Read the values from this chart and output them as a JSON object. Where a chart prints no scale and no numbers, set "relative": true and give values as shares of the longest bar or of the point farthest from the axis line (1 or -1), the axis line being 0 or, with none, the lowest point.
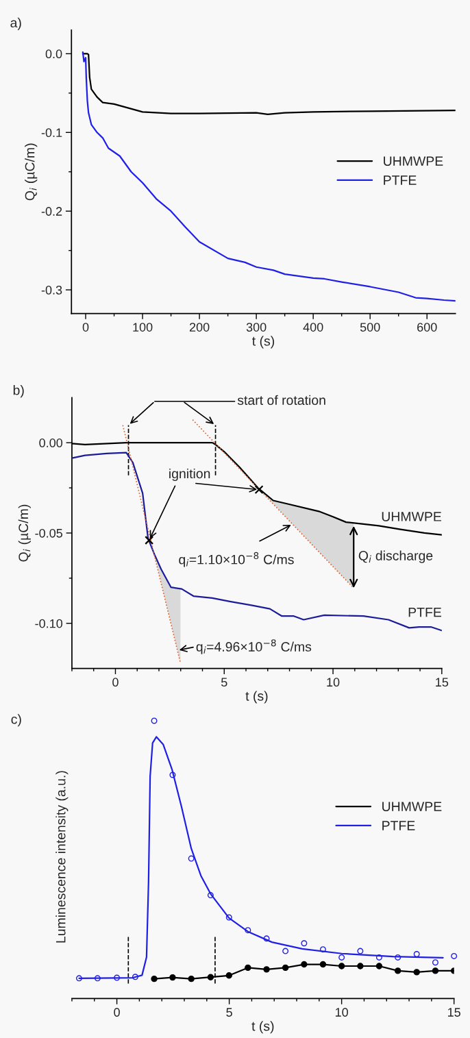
{
  "chart_data": [
    {
      "type": "line",
      "title": "a)",
      "xlabel": "t (s)",
      "ylabel": "Q$_{i}$ (µC/m)",
      "xlim": [
        -25,
        650
      ],
      "ylim": [
        -0.33,
        0.03
      ],
      "xticks": [
        0,
        {
          "value": 50,
          "label": null
        },
        100,
        {
          "value": 150,
          "label": null
        },
        200,
        {
          "value": 250,
          "label": null
        },
        300,
        {
          "value": 350,
          "label": null
        },
        400,
        {
          "value": 450,
          "label": null
        },
        500,
        {
          "value": 550,
          "label": null
        },
        600
      ],
      "yticks": [
        {
          "value": 0,
          "label": "0.0"
        },
        {
          "value": -0.05,
          "label": null
        },
        {
          "value": -0.1,
          "label": "-0.1"
        },
        {
          "value": -0.15,
          "label": null
        },
        {
          "value": -0.2,
          "label": "-0.2"
        },
        {
          "value": -0.25,
          "label": null
        },
        {
          "value": -0.3,
          "label": "-0.3"
        }
      ],
      "legend": "center right",
      "series": [
        {
          "name": "UHMWPE",
          "color": "#000000",
          "x": [
            -5,
            0,
            3,
            5,
            7,
            10,
            20,
            30,
            50,
            75,
            100,
            150,
            200,
            300,
            320,
            350,
            400,
            500,
            650
          ],
          "values": [
            0,
            0,
            0,
            -0.001,
            -0.03,
            -0.045,
            -0.055,
            -0.062,
            -0.064,
            -0.069,
            -0.074,
            -0.076,
            -0.076,
            -0.075,
            -0.077,
            -0.075,
            -0.074,
            -0.073,
            -0.072
          ]
        },
        {
          "name": "PTFE",
          "color": "#1f1fe6",
          "x": [
            -5,
            -3,
            0,
            1,
            3,
            5,
            10,
            20,
            30,
            40,
            60,
            80,
            100,
            125,
            150,
            175,
            200,
            250,
            280,
            300,
            330,
            350,
            400,
            420,
            450,
            500,
            550,
            580,
            600,
            630,
            650
          ],
          "values": [
            0.002,
            -0.01,
            -0.005,
            -0.03,
            -0.06,
            -0.075,
            -0.09,
            -0.1,
            -0.107,
            -0.12,
            -0.13,
            -0.15,
            -0.164,
            -0.185,
            -0.2,
            -0.22,
            -0.239,
            -0.26,
            -0.265,
            -0.271,
            -0.275,
            -0.28,
            -0.285,
            -0.286,
            -0.29,
            -0.296,
            -0.303,
            -0.31,
            -0.311,
            -0.313,
            -0.314
          ]
        }
      ]
    },
    {
      "type": "line",
      "title": "b)",
      "xlabel": "t (s)",
      "ylabel": "Q$_{i}$ (µC/m)",
      "xlim": [
        -2,
        15
      ],
      "ylim": [
        -0.125,
        0.025
      ],
      "xticks": [
        {
          "value": -2,
          "label": null
        },
        {
          "value": -1,
          "label": null
        },
        0,
        {
          "value": 1,
          "label": null
        },
        {
          "value": 2,
          "label": null
        },
        {
          "value": 3,
          "label": null
        },
        {
          "value": 4,
          "label": null
        },
        5,
        {
          "value": 6,
          "label": null
        },
        {
          "value": 7,
          "label": null
        },
        {
          "value": 8,
          "label": null
        },
        {
          "value": 9,
          "label": null
        },
        10,
        {
          "value": 11,
          "label": null
        },
        {
          "value": 12,
          "label": null
        },
        {
          "value": 13,
          "label": null
        },
        {
          "value": 14,
          "label": null
        },
        15
      ],
      "yticks": [
        {
          "value": 0,
          "label": "0.00"
        },
        {
          "value": -0.025,
          "label": null
        },
        {
          "value": -0.05,
          "label": "-0.05"
        },
        {
          "value": -0.075,
          "label": null
        },
        {
          "value": -0.1,
          "label": "-0.10"
        }
      ],
      "series": [
        {
          "name": "UHMWPE",
          "color": "#000000",
          "x": [
            -2,
            -1.4,
            0.5,
            4.45,
            4.6,
            5.0,
            5.7,
            6.55,
            7.25,
            7.95,
            9.35,
            10.0,
            10.6,
            11.4,
            12.1,
            13.1,
            14.2,
            15
          ],
          "values": [
            -0.0005,
            -0.001,
            0,
            0,
            -0.001,
            -0.005,
            -0.0135,
            -0.025,
            -0.032,
            -0.034,
            -0.038,
            -0.041,
            -0.044,
            -0.045,
            -0.046,
            -0.048,
            -0.05,
            -0.051
          ]
        },
        {
          "name": "PTFE",
          "color": "#1c1c9a",
          "x": [
            -2,
            -1.4,
            -0.4,
            0.5,
            0.8,
            1.25,
            1.5,
            1.8,
            2.1,
            2.55,
            3.05,
            3.6,
            4.45,
            5.3,
            6.25,
            7.1,
            7.65,
            8.2,
            8.65,
            9.6,
            11.4,
            12.55,
            13.5,
            13.95,
            14.5,
            15
          ],
          "values": [
            -0.0085,
            -0.007,
            -0.006,
            -0.0055,
            -0.011,
            -0.028,
            -0.053,
            -0.062,
            -0.07,
            -0.08,
            -0.081,
            -0.085,
            -0.086,
            -0.088,
            -0.09,
            -0.092,
            -0.096,
            -0.096,
            -0.098,
            -0.0955,
            -0.096,
            -0.098,
            -0.1025,
            -0.102,
            -0.102,
            -0.104
          ]
        },
        {
          "type": "line",
          "color": "#e0602a",
          "line_style": "dotted",
          "x": [
            0.34,
            1.5,
            1.8,
            2.1,
            2.55,
            2.99
          ],
          "values": [
            0.0097,
            -0.048,
            -0.0629,
            -0.0778,
            -0.1001,
            -0.122
          ],
          "lower": [
            null,
            null,
            -0.0629,
            -0.0778,
            -0.1001,
            -0.122
          ],
          "upper": [
            null,
            null,
            -0.062,
            -0.07,
            -0.08,
            -0.081
          ]
        },
        {
          "type": "line",
          "color": "#e0602a",
          "line_style": "dotted",
          "x": [
            3.55,
            6.55,
            7.25,
            7.95,
            9.35,
            10.0,
            10.6,
            10.95
          ],
          "values": [
            0.0127,
            -0.0251,
            -0.0339,
            -0.0427,
            -0.0604,
            -0.0686,
            -0.0761,
            -0.0805
          ],
          "lower": [
            null,
            -0.0251,
            -0.0339,
            -0.0427,
            -0.0604,
            -0.0686,
            -0.0761,
            -0.0805
          ],
          "upper": [
            null,
            -0.025,
            -0.032,
            -0.034,
            -0.038,
            -0.041,
            -0.044,
            -0.0445
          ]
        },
        {
          "type": "scatter",
          "color": "#000000",
          "marker": "cross",
          "x": [
            1.55,
            6.6
          ],
          "values": [
            -0.054,
            -0.026
          ]
        }
      ],
      "ref_lines": [
        {
          "axis": "x",
          "value": 0.6,
          "line_style": "dashed",
          "color": "#000000"
        },
        {
          "axis": "x",
          "value": 4.6,
          "line_style": "dashed",
          "color": "#000000"
        }
      ],
      "annotations": [
        "start of rotation",
        {
          "text": "ignition",
          "x": 1.55,
          "y": -0.054
        },
        {
          "text": "q$_{i}$=1.10×10$^{−8}$ C/ms",
          "x": 8.15,
          "y": -0.045
        },
        {
          "text": "q$_{i}$=4.96×10$^{−8}$ C/ms",
          "x": 2.85,
          "y": -0.115
        },
        "Q$_{i}$ discharge"
      ]
    },
    {
      "type": "line",
      "title": "c)",
      "xlabel": "t (s)",
      "ylabel": "Luminescence intensity (a.u.)",
      "relative": true,
      "tick_labels": "x",
      "xlim": [
        -2,
        15
      ],
      "xticks": [
        {
          "value": -2,
          "label": null
        },
        {
          "value": -1,
          "label": null
        },
        0,
        {
          "value": 1,
          "label": null
        },
        {
          "value": 2,
          "label": null
        },
        {
          "value": 3,
          "label": null
        },
        {
          "value": 4,
          "label": null
        },
        5,
        {
          "value": 6,
          "label": null
        },
        {
          "value": 7,
          "label": null
        },
        {
          "value": 8,
          "label": null
        },
        {
          "value": 9,
          "label": null
        },
        10,
        {
          "value": 11,
          "label": null
        },
        {
          "value": 12,
          "label": null
        },
        {
          "value": 13,
          "label": null
        },
        {
          "value": 14,
          "label": null
        },
        15
      ],
      "legend": "center right",
      "series": [
        {
          "name": "UHMWPE",
          "color": "#000000",
          "marker": "circle",
          "x": [
            1.66,
            2.48,
            3.31,
            4.17,
            4.99,
            5.83,
            6.66,
            7.5,
            8.33,
            9.17,
            10.0,
            10.83,
            11.67,
            12.5,
            13.34,
            14.17,
            15.0
          ],
          "values": [
            0.071,
            0.076,
            0.071,
            0.077,
            0.083,
            0.111,
            0.105,
            0.111,
            0.123,
            0.123,
            0.117,
            0.117,
            0.117,
            0.1,
            0.095,
            0.1,
            0.1
          ]
        },
        {
          "name": "PTFE",
          "color": "#1f1fe6",
          "x": [
            -1.68,
            0.71,
            1.12,
            1.32,
            1.41,
            1.48,
            1.59,
            1.76,
            2.06,
            2.46,
            2.87,
            3.31,
            3.74,
            4.17,
            4.99,
            5.83,
            6.9,
            8.25,
            10.0,
            12.29,
            14.51
          ],
          "values": [
            0.073,
            0.075,
            0.084,
            0.149,
            0.42,
            0.8,
            0.92,
            0.942,
            0.915,
            0.823,
            0.692,
            0.54,
            0.442,
            0.377,
            0.29,
            0.241,
            0.203,
            0.179,
            0.162,
            0.151,
            0.147
          ]
        },
        {
          "type": "scatter",
          "color": "#1f1fe6",
          "marker": "circle",
          "x": [
            -1.68,
            -0.86,
            0,
            0.82,
            1.66,
            2.48,
            3.31,
            4.17,
            4.99,
            5.83,
            6.66,
            7.5,
            8.33,
            9.17,
            10.0,
            10.83,
            11.67,
            12.5,
            13.34,
            14.17,
            15.0
          ],
          "values": [
            0.073,
            0.073,
            0.075,
            0.078,
            1.0,
            0.805,
            0.504,
            0.372,
            0.292,
            0.246,
            0.216,
            0.171,
            0.199,
            0.177,
            0.148,
            0.171,
            0.148,
            0.148,
            0.16,
            0.13,
            0.153
          ]
        }
      ],
      "ref_lines": [
        {
          "axis": "x",
          "value": 0.51,
          "line_style": "dashed",
          "color": "#000000"
        },
        {
          "axis": "x",
          "value": 4.37,
          "line_style": "dashed",
          "color": "#000000"
        }
      ]
    }
  ]
}
